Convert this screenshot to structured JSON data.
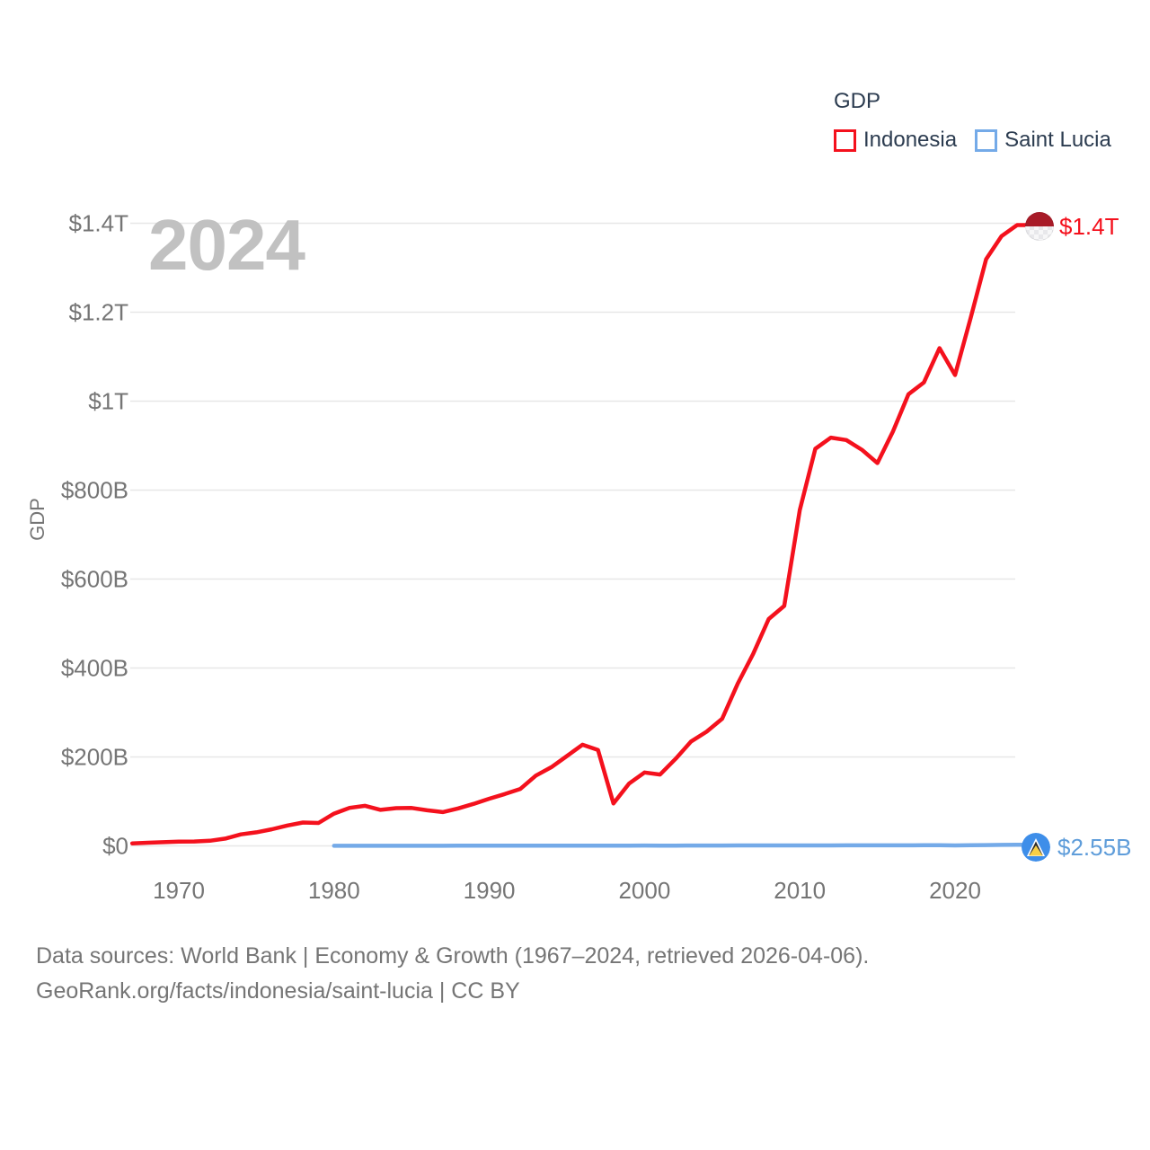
{
  "chart": {
    "watermark": "2024",
    "y_axis_title": "GDP",
    "legend": {
      "title": "GDP",
      "items": [
        {
          "label": "Indonesia",
          "color": "#f4111d"
        },
        {
          "label": "Saint Lucia",
          "color": "#74aae8"
        }
      ]
    },
    "end_labels": {
      "indonesia": "$1.4T",
      "saint_lucia": "$2.55B"
    },
    "colors": {
      "indonesia_line": "#f4111d",
      "indonesia_label": "#f4111d",
      "saint_lucia_line": "#74aae8",
      "saint_lucia_label": "#5f9dda",
      "gridline": "#e7e7e7",
      "axis_text": "#757575",
      "legend_text": "#2c3c50",
      "watermark": "#c1c1c1"
    }
  },
  "chart_data": {
    "type": "line",
    "title": "GDP",
    "ylabel": "GDP",
    "x_range": [
      1967,
      2024
    ],
    "y_range_billions": [
      0,
      1400
    ],
    "grid": true,
    "legend_position": "top-right",
    "x_ticks": [
      {
        "year": 1970,
        "label": "1970"
      },
      {
        "year": 1980,
        "label": "1980"
      },
      {
        "year": 1990,
        "label": "1990"
      },
      {
        "year": 2000,
        "label": "2000"
      },
      {
        "year": 2010,
        "label": "2010"
      },
      {
        "year": 2020,
        "label": "2020"
      }
    ],
    "y_ticks": [
      {
        "value": 0,
        "label": "$0"
      },
      {
        "value": 200,
        "label": "$200B"
      },
      {
        "value": 400,
        "label": "$400B"
      },
      {
        "value": 600,
        "label": "$600B"
      },
      {
        "value": 800,
        "label": "$800B"
      },
      {
        "value": 1000,
        "label": "$1T"
      },
      {
        "value": 1200,
        "label": "$1.2T"
      },
      {
        "value": 1400,
        "label": "$1.4T"
      }
    ],
    "series": [
      {
        "name": "Indonesia",
        "color": "#f4111d",
        "label_color": "#f4111d",
        "end_value_label": "$1.4T",
        "x_start": 1967,
        "values_billions_usd": [
          5.7,
          7.1,
          8.3,
          9.5,
          9.9,
          11.6,
          16.3,
          25.8,
          30.5,
          37.3,
          45.8,
          52.5,
          51.5,
          72.5,
          85.5,
          90.2,
          81.0,
          84.8,
          85.3,
          80.0,
          75.9,
          84.3,
          94.5,
          106.1,
          116.6,
          128.0,
          158.0,
          176.9,
          202.1,
          227.4,
          215.7,
          95.4,
          140.0,
          165.0,
          160.4,
          195.7,
          234.8,
          256.8,
          285.9,
          364.6,
          432.2,
          510.2,
          539.6,
          755.1,
          893.0,
          917.9,
          912.5,
          890.8,
          860.9,
          931.9,
          1015.6,
          1042.3,
          1119.1,
          1058.7,
          1186.5,
          1319.1,
          1371.2,
          1396.0
        ]
      },
      {
        "name": "Saint Lucia",
        "color": "#74aae8",
        "label_color": "#5f9dda",
        "end_value_label": "$2.55B",
        "x_start": 1980,
        "values_billions_usd": [
          0.13,
          0.15,
          0.16,
          0.18,
          0.2,
          0.24,
          0.26,
          0.29,
          0.32,
          0.35,
          0.4,
          0.43,
          0.47,
          0.49,
          0.51,
          0.54,
          0.56,
          0.59,
          0.62,
          0.67,
          0.71,
          0.69,
          0.7,
          0.74,
          0.8,
          0.85,
          0.93,
          0.99,
          1.03,
          1.0,
          1.05,
          1.08,
          1.09,
          1.12,
          1.15,
          1.19,
          1.23,
          1.27,
          1.32,
          1.37,
          1.1,
          1.38,
          1.86,
          2.2,
          2.55
        ]
      }
    ]
  },
  "footer": {
    "line1": "Data sources: World Bank | Economy & Growth (1967–2024, retrieved 2026-04-06).",
    "line2": "GeoRank.org/facts/indonesia/saint-lucia | CC BY"
  }
}
